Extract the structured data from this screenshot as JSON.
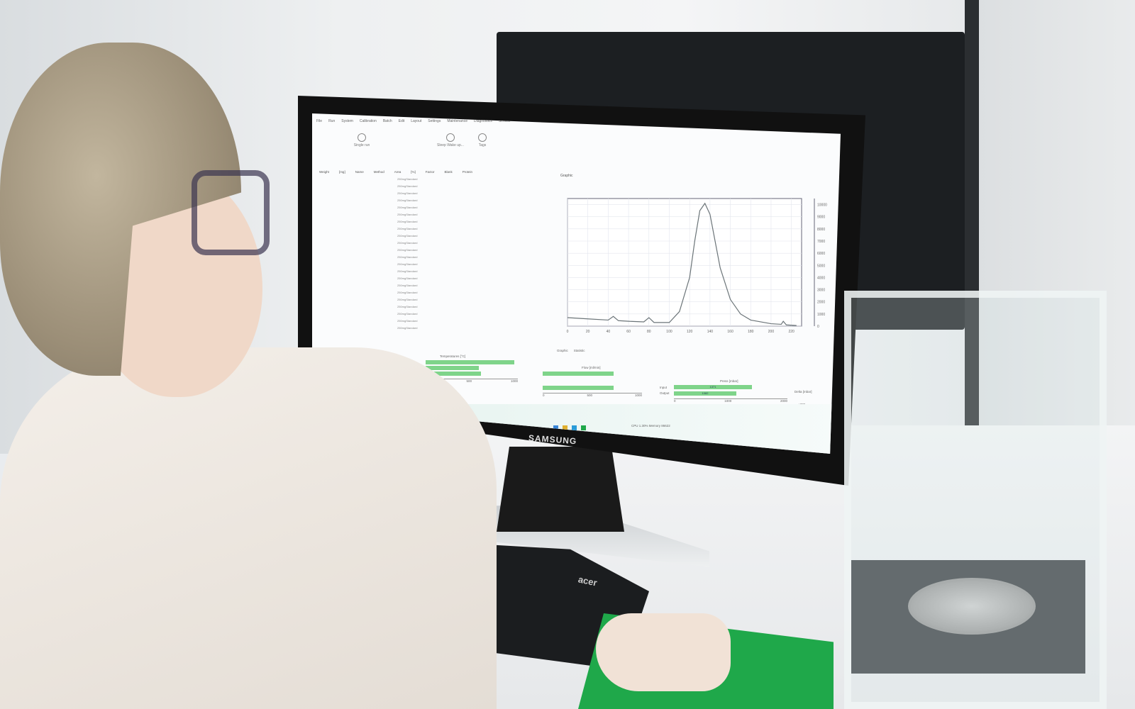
{
  "monitor_brand": "SAMSUNG",
  "keyboard_brand": "acer",
  "app": {
    "menu": [
      "File",
      "Run",
      "System",
      "Calibration",
      "Batch",
      "Edit",
      "Layout",
      "Settings",
      "Maintenance",
      "Diagnostics",
      "Service"
    ],
    "toolbar": [
      {
        "label": "Single run"
      },
      {
        "label": "Sleep\nWake up..."
      },
      {
        "label": "Tags"
      }
    ],
    "table": {
      "columns": [
        "Weight",
        "[mg]",
        "Name",
        "Method",
        "Area",
        "[%]",
        "Factor",
        "Blank",
        "Protein"
      ],
      "methods": "250mgStandard"
    },
    "graph": {
      "panel_title": "Graphic",
      "tabs": [
        "Graphic",
        "Statistic"
      ]
    },
    "gauges": {
      "temperature_title": "Temperatures [°C]",
      "flow_title": "Flow [ml/min]",
      "press_title": "Press [mbar]",
      "press_labels": [
        "Input",
        "Output"
      ],
      "press_values": [
        "1371",
        "1082"
      ],
      "delta_label": "Delta [mbar]",
      "delta_value": "+289",
      "temp_scale": [
        "0",
        "500",
        "1000"
      ],
      "flow_scale": [
        "0",
        "500",
        "1000"
      ],
      "press_scale": [
        "0",
        "1000",
        "2000"
      ]
    },
    "status": "CPU 1.30% Memory 86622"
  },
  "chart_data": {
    "type": "line",
    "x_ticks": [
      0,
      20,
      40,
      60,
      80,
      100,
      120,
      140,
      160,
      180,
      200,
      220
    ],
    "y_ticks": [
      0,
      1000,
      2000,
      3000,
      4000,
      5000,
      6000,
      7000,
      8000,
      9000,
      10000
    ],
    "xlim": [
      0,
      230
    ],
    "ylim": [
      0,
      10500
    ],
    "grid": true,
    "x": [
      0,
      20,
      40,
      45,
      50,
      60,
      75,
      80,
      85,
      100,
      110,
      120,
      125,
      130,
      135,
      140,
      145,
      150,
      160,
      170,
      180,
      200,
      210,
      212,
      215,
      225
    ],
    "y": [
      700,
      600,
      500,
      800,
      450,
      400,
      350,
      700,
      300,
      300,
      1200,
      4000,
      7000,
      9500,
      10100,
      9200,
      7000,
      4800,
      2200,
      1000,
      500,
      200,
      150,
      400,
      100,
      50
    ],
    "line_color": "#6b7478"
  }
}
